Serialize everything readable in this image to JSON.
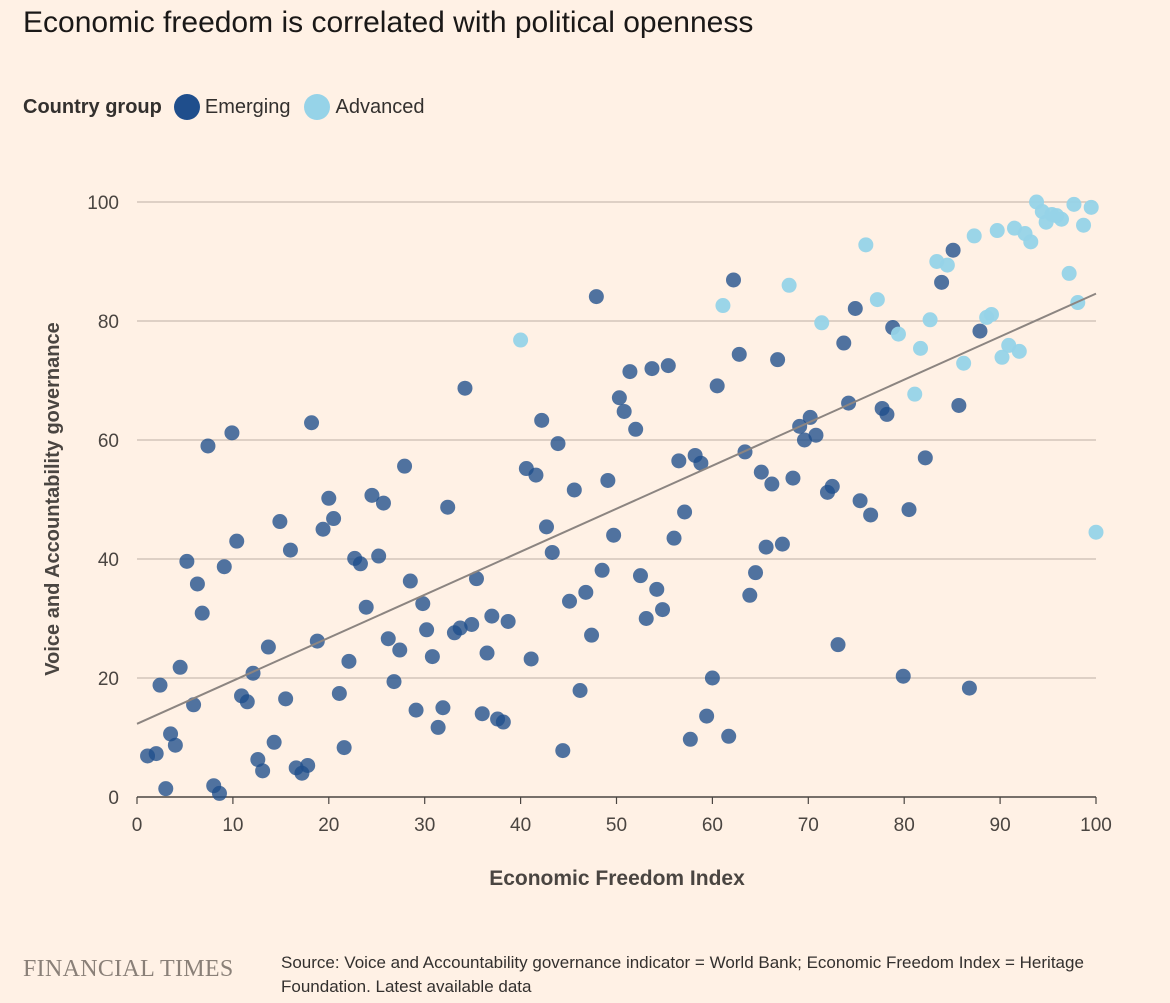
{
  "title": "Economic freedom is correlated with political openness",
  "legend": {
    "title": "Country group",
    "items": [
      {
        "label": "Emerging",
        "color": "#1f4e8c"
      },
      {
        "label": "Advanced",
        "color": "#96d3e8"
      }
    ]
  },
  "footer": {
    "brand": "FINANCIAL TIMES",
    "source": "Source: Voice and Accountability governance indicator = World Bank; Economic Freedom Index = Heritage Foundation. Latest available data"
  },
  "chart_data": {
    "type": "scatter",
    "title": "Economic freedom is correlated with political openness",
    "xlabel": "Economic Freedom Index",
    "ylabel": "Voice and Accountability governance",
    "xlim": [
      0,
      100
    ],
    "ylim": [
      0,
      100
    ],
    "xticks": [
      0,
      10,
      20,
      30,
      40,
      50,
      60,
      70,
      80,
      90,
      100
    ],
    "yticks": [
      0,
      20,
      40,
      60,
      80,
      100
    ],
    "grid": "horizontal",
    "legend_position": "top-left",
    "trendline": {
      "x": [
        0,
        100
      ],
      "y": [
        12.3,
        84.6
      ],
      "color": "#8c8581"
    },
    "series": [
      {
        "name": "Emerging",
        "color": "#1f4e8c",
        "points": [
          [
            1.1,
            6.9
          ],
          [
            2.0,
            7.3
          ],
          [
            2.4,
            18.8
          ],
          [
            3.0,
            1.4
          ],
          [
            3.5,
            10.6
          ],
          [
            4.0,
            8.7
          ],
          [
            4.5,
            21.8
          ],
          [
            5.2,
            39.6
          ],
          [
            5.9,
            15.5
          ],
          [
            6.3,
            35.8
          ],
          [
            6.8,
            30.9
          ],
          [
            7.4,
            59.0
          ],
          [
            8.0,
            1.9
          ],
          [
            8.6,
            0.6
          ],
          [
            9.1,
            38.7
          ],
          [
            9.9,
            61.2
          ],
          [
            10.4,
            43.0
          ],
          [
            10.9,
            17.0
          ],
          [
            11.5,
            16.0
          ],
          [
            12.1,
            20.8
          ],
          [
            12.6,
            6.3
          ],
          [
            13.1,
            4.4
          ],
          [
            13.7,
            25.2
          ],
          [
            14.3,
            9.2
          ],
          [
            14.9,
            46.3
          ],
          [
            15.5,
            16.5
          ],
          [
            16.0,
            41.5
          ],
          [
            16.6,
            4.9
          ],
          [
            17.2,
            4.0
          ],
          [
            17.8,
            5.3
          ],
          [
            18.2,
            62.9
          ],
          [
            18.8,
            26.2
          ],
          [
            19.4,
            45.0
          ],
          [
            20.0,
            50.2
          ],
          [
            20.5,
            46.8
          ],
          [
            21.1,
            17.4
          ],
          [
            21.6,
            8.3
          ],
          [
            22.1,
            22.8
          ],
          [
            22.7,
            40.1
          ],
          [
            23.3,
            39.2
          ],
          [
            23.9,
            31.9
          ],
          [
            24.5,
            50.7
          ],
          [
            25.2,
            40.5
          ],
          [
            25.7,
            49.4
          ],
          [
            26.2,
            26.6
          ],
          [
            26.8,
            19.4
          ],
          [
            27.4,
            24.7
          ],
          [
            27.9,
            55.6
          ],
          [
            28.5,
            36.3
          ],
          [
            29.1,
            14.6
          ],
          [
            29.8,
            32.5
          ],
          [
            30.2,
            28.1
          ],
          [
            30.8,
            23.6
          ],
          [
            31.4,
            11.7
          ],
          [
            31.9,
            15.0
          ],
          [
            32.4,
            48.7
          ],
          [
            33.1,
            27.6
          ],
          [
            33.7,
            28.4
          ],
          [
            34.2,
            68.7
          ],
          [
            34.9,
            29.0
          ],
          [
            35.4,
            36.7
          ],
          [
            36.0,
            14.0
          ],
          [
            36.5,
            24.2
          ],
          [
            37.0,
            30.4
          ],
          [
            37.6,
            13.1
          ],
          [
            38.2,
            12.6
          ],
          [
            38.7,
            29.5
          ],
          [
            40.6,
            55.2
          ],
          [
            41.1,
            23.2
          ],
          [
            41.6,
            54.1
          ],
          [
            42.2,
            63.3
          ],
          [
            42.7,
            45.4
          ],
          [
            43.3,
            41.1
          ],
          [
            43.9,
            59.4
          ],
          [
            44.4,
            7.8
          ],
          [
            45.1,
            32.9
          ],
          [
            45.6,
            51.6
          ],
          [
            46.2,
            17.9
          ],
          [
            46.8,
            34.4
          ],
          [
            47.4,
            27.2
          ],
          [
            47.9,
            84.1
          ],
          [
            48.5,
            38.1
          ],
          [
            49.1,
            53.2
          ],
          [
            49.7,
            44.0
          ],
          [
            50.3,
            67.1
          ],
          [
            50.8,
            64.8
          ],
          [
            51.4,
            71.5
          ],
          [
            52.0,
            61.8
          ],
          [
            52.5,
            37.2
          ],
          [
            53.1,
            30.0
          ],
          [
            53.7,
            72.0
          ],
          [
            54.2,
            34.9
          ],
          [
            54.8,
            31.5
          ],
          [
            55.4,
            72.5
          ],
          [
            56.0,
            43.5
          ],
          [
            56.5,
            56.5
          ],
          [
            57.1,
            47.9
          ],
          [
            57.7,
            9.7
          ],
          [
            58.2,
            57.4
          ],
          [
            58.8,
            56.1
          ],
          [
            59.4,
            13.6
          ],
          [
            60.0,
            20.0
          ],
          [
            60.5,
            69.1
          ],
          [
            61.7,
            10.2
          ],
          [
            62.2,
            86.9
          ],
          [
            62.8,
            74.4
          ],
          [
            63.4,
            58.0
          ],
          [
            63.9,
            33.9
          ],
          [
            64.5,
            37.7
          ],
          [
            65.1,
            54.6
          ],
          [
            65.6,
            42.0
          ],
          [
            66.2,
            52.6
          ],
          [
            66.8,
            73.5
          ],
          [
            67.3,
            42.5
          ],
          [
            68.4,
            53.6
          ],
          [
            69.1,
            62.3
          ],
          [
            69.6,
            60.0
          ],
          [
            70.2,
            63.8
          ],
          [
            70.8,
            60.8
          ],
          [
            72.0,
            51.2
          ],
          [
            72.5,
            52.2
          ],
          [
            73.1,
            25.6
          ],
          [
            73.7,
            76.3
          ],
          [
            74.2,
            66.2
          ],
          [
            74.9,
            82.1
          ],
          [
            75.4,
            49.8
          ],
          [
            76.5,
            47.4
          ],
          [
            77.7,
            65.3
          ],
          [
            78.2,
            64.3
          ],
          [
            78.8,
            78.9
          ],
          [
            79.9,
            20.3
          ],
          [
            80.5,
            48.3
          ],
          [
            82.2,
            57.0
          ],
          [
            83.9,
            86.5
          ],
          [
            85.1,
            91.9
          ],
          [
            85.7,
            65.8
          ],
          [
            86.8,
            18.3
          ],
          [
            87.9,
            78.3
          ]
        ]
      },
      {
        "name": "Advanced",
        "color": "#96d3e8",
        "points": [
          [
            40.0,
            76.8
          ],
          [
            61.1,
            82.6
          ],
          [
            68.0,
            86.0
          ],
          [
            71.4,
            79.7
          ],
          [
            76.0,
            92.8
          ],
          [
            77.2,
            83.6
          ],
          [
            79.4,
            77.8
          ],
          [
            81.1,
            67.7
          ],
          [
            81.7,
            75.4
          ],
          [
            82.7,
            80.2
          ],
          [
            83.4,
            90.0
          ],
          [
            84.5,
            89.4
          ],
          [
            86.2,
            72.9
          ],
          [
            87.3,
            94.3
          ],
          [
            88.6,
            80.6
          ],
          [
            89.1,
            81.1
          ],
          [
            89.7,
            95.2
          ],
          [
            90.2,
            73.9
          ],
          [
            90.9,
            75.9
          ],
          [
            91.5,
            95.6
          ],
          [
            92.0,
            74.9
          ],
          [
            92.6,
            94.7
          ],
          [
            93.2,
            93.3
          ],
          [
            93.8,
            100.0
          ],
          [
            94.4,
            98.4
          ],
          [
            94.8,
            96.6
          ],
          [
            95.4,
            97.9
          ],
          [
            95.9,
            97.7
          ],
          [
            96.4,
            97.1
          ],
          [
            97.2,
            88.0
          ],
          [
            97.7,
            99.6
          ],
          [
            98.1,
            83.1
          ],
          [
            98.7,
            96.1
          ],
          [
            99.5,
            99.1
          ],
          [
            100.0,
            44.5
          ]
        ]
      }
    ]
  }
}
